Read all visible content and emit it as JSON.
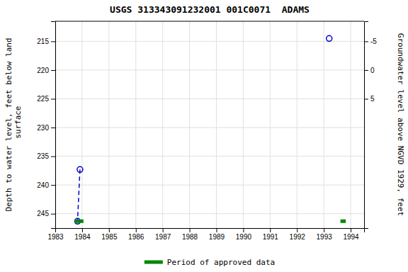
{
  "chart_data": {
    "type": "line",
    "title": "USGS 313343091232001 001C0071  ADAMS",
    "ylabel": "Depth to water level, feet below land\n surface",
    "y2label": "Groundwater level above NGVD 1929, feet",
    "xlim": [
      1983.0,
      1994.5
    ],
    "ylim": [
      247.5,
      211.5
    ],
    "y2lim": [
      27.5,
      -8.5
    ],
    "xticks": [
      1983,
      1984,
      1985,
      1986,
      1987,
      1988,
      1989,
      1990,
      1991,
      1992,
      1993,
      1994
    ],
    "yticks": [
      215,
      220,
      225,
      230,
      235,
      240,
      245
    ],
    "y2ticks": [
      5,
      0,
      -5
    ],
    "grid": true,
    "legend": "bottom",
    "series": [
      {
        "type": "line",
        "line_style": "dashed",
        "color": "#0000cc",
        "x": [
          1983.92,
          1983.83
        ],
        "values": [
          237.3,
          246.3
        ]
      },
      {
        "type": "scatter",
        "marker": "open-circle",
        "color": "#0000cc",
        "x": [
          1983.83,
          1983.92,
          1993.2
        ],
        "values": [
          246.3,
          237.3,
          214.5
        ]
      },
      {
        "name": "Period of approved data",
        "type": "line",
        "line_style": "solid",
        "color": "#008800",
        "x": [
          1983.72,
          1984.05,
          null,
          1993.62,
          1993.82
        ],
        "values": [
          246.3,
          246.3,
          null,
          246.3,
          246.3
        ]
      }
    ]
  }
}
